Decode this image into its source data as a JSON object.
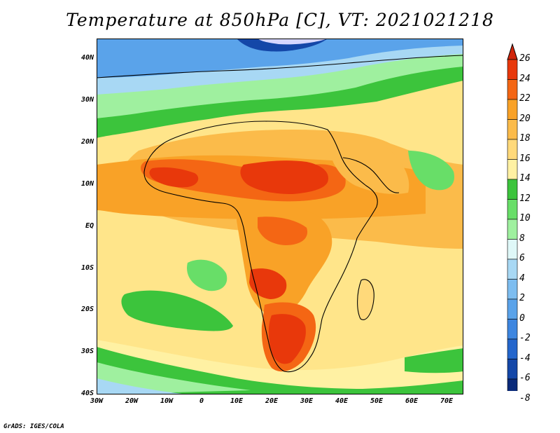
{
  "title": "Temperature at 850hPa [C], VT: 2021021218",
  "footer": "GrADS: IGES/COLA",
  "map": {
    "region": "Africa and surrounding oceans",
    "lat_labels": [
      "40N",
      "30N",
      "20N",
      "10N",
      "EQ",
      "10S",
      "20S",
      "30S",
      "40S"
    ],
    "lon_labels": [
      "30W",
      "20W",
      "10W",
      "0",
      "10E",
      "20E",
      "30E",
      "40E",
      "50E",
      "60E",
      "70E"
    ],
    "lat_range": [
      -40,
      45
    ],
    "lon_range": [
      -30,
      75
    ]
  },
  "colorbar": {
    "labels": [
      "26",
      "24",
      "22",
      "20",
      "18",
      "16",
      "14",
      "12",
      "10",
      "8",
      "6",
      "4",
      "2",
      "0",
      "-2",
      "-4",
      "-6",
      "-8"
    ],
    "colors": [
      "#e8380b",
      "#f46614",
      "#f9a227",
      "#fbbb4a",
      "#ffd97a",
      "#fff1a3",
      "#3cc43c",
      "#68de68",
      "#9ff09f",
      "#dff8f8",
      "#a8d8f4",
      "#7dbdf0",
      "#5aa3ea",
      "#3d86e0",
      "#2466cc",
      "#1447a8",
      "#0a2a7a",
      "#061a5a"
    ],
    "top_arrow_color": "#d1250b",
    "bottom_arrow_color": "#d6d6ff"
  }
}
